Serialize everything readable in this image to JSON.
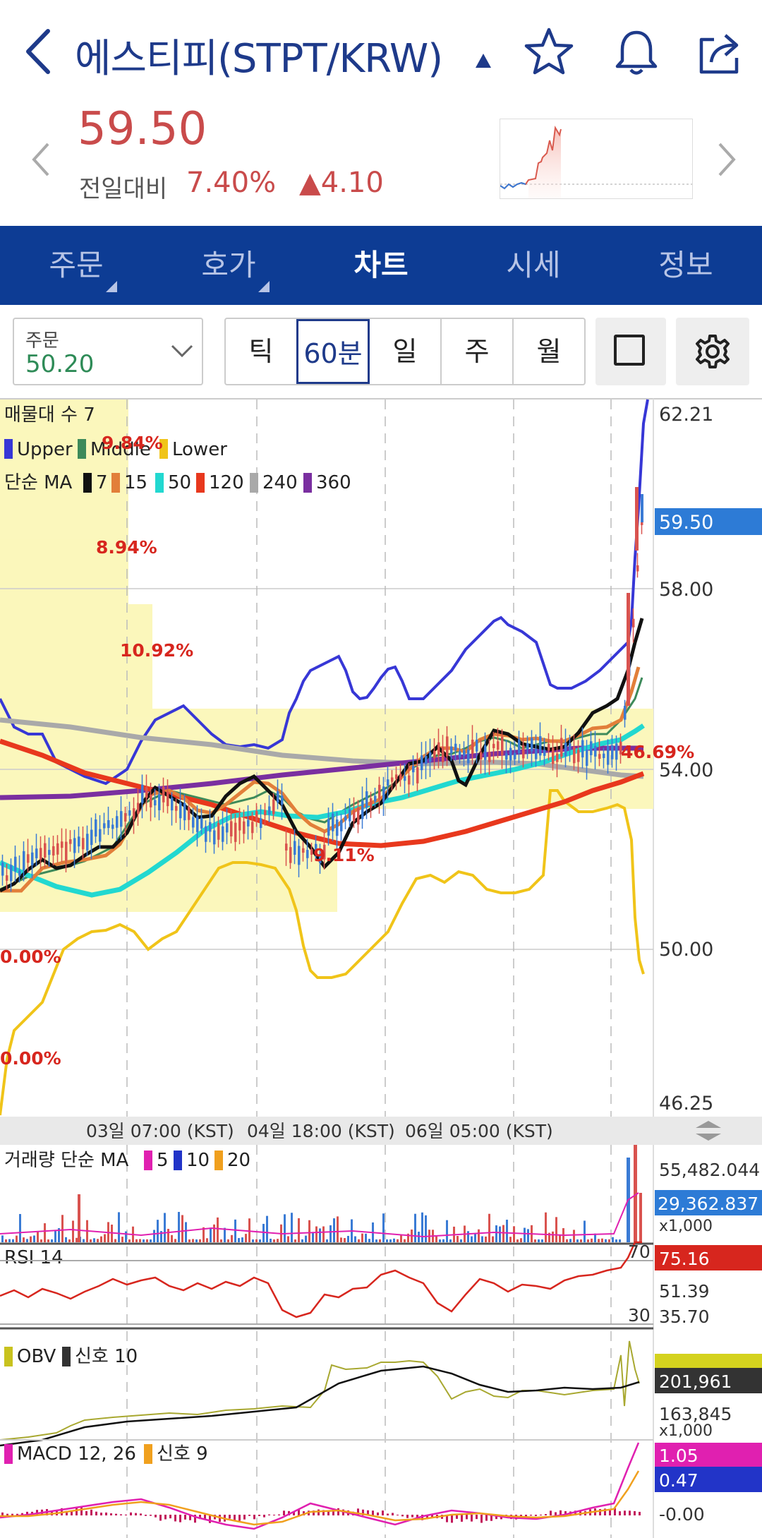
{
  "header": {
    "title": "에스티피(STPT/KRW)",
    "actions": [
      "star-icon",
      "bell-icon",
      "share-icon"
    ]
  },
  "quote": {
    "price": "59.50",
    "change_label": "전일대비",
    "change_pct": "7.40%",
    "change_abs": "4.10",
    "up_color": "#c94b4b"
  },
  "tabs": [
    {
      "label": "주문"
    },
    {
      "label": "호가"
    },
    {
      "label": "차트"
    },
    {
      "label": "시세"
    },
    {
      "label": "정보"
    }
  ],
  "active_tab": "차트",
  "toolbar": {
    "order_label": "주문",
    "order_value": "50.20",
    "periods": [
      {
        "label": "틱"
      },
      {
        "label": "60분"
      },
      {
        "label": "일"
      },
      {
        "label": "주"
      },
      {
        "label": "월"
      }
    ],
    "selected_period": "60분"
  },
  "main_chart": {
    "legend_volume_profile": "매물대 수 7",
    "legend_bollinger": [
      "Upper",
      "Middle",
      "Lower"
    ],
    "legend_ma_title": "단순 MA",
    "legend_ma": [
      "7",
      "15",
      "50",
      "120",
      "240",
      "360"
    ],
    "y_ticks": [
      "62.21",
      "58.00",
      "54.00",
      "50.00",
      "46.25"
    ],
    "current_price_tag": "59.50",
    "profile_pcts": [
      "9.84%",
      "8.94%",
      "10.92%",
      "46.69%",
      "9.11%",
      "0.00%",
      "0.00%"
    ],
    "x_labels": [
      "03일 07:00 (KST)",
      "04일 18:00 (KST)",
      "06일 05:00 (KST)"
    ]
  },
  "volume_panel": {
    "title": "거래량 단순 MA",
    "ma": [
      "5",
      "10",
      "20"
    ],
    "values": [
      "55,482.044",
      "29,362.837",
      "x1,000"
    ]
  },
  "rsi_panel": {
    "title": "RSI 14",
    "values": [
      "75.16",
      "51.39",
      "35.70"
    ],
    "levels": [
      "70",
      "30"
    ]
  },
  "obv_panel": {
    "title": "OBV",
    "signal": "신호 10",
    "values": [
      "201,961",
      "163,845",
      "x1,000"
    ]
  },
  "macd_panel": {
    "title": "MACD 12, 26",
    "signal": "신호 9",
    "values": [
      "1.05",
      "0.47",
      "-0.00"
    ]
  }
}
